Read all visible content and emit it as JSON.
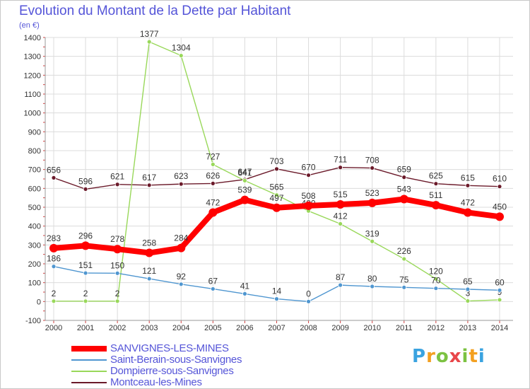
{
  "chart_data": {
    "type": "line",
    "title": "Evolution du Montant de la Dette par Habitant",
    "unit_label": "(en €)",
    "x": [
      "2000",
      "2001",
      "2002",
      "2003",
      "2004",
      "2005",
      "2006",
      "2007",
      "2008",
      "2009",
      "2010",
      "2011",
      "2012",
      "2013",
      "2014"
    ],
    "ylim": [
      -100,
      1400
    ],
    "yticks": [
      -100,
      0,
      100,
      200,
      300,
      400,
      500,
      600,
      700,
      800,
      900,
      1000,
      1100,
      1200,
      1300,
      1400
    ],
    "grid": true,
    "legend_position": "bottom-left",
    "series": [
      {
        "name": "Montceau-les-Mines",
        "color": "#6b1a2a",
        "values": [
          656,
          596,
          621,
          617,
          623,
          626,
          647,
          703,
          670,
          711,
          708,
          659,
          625,
          615,
          610
        ]
      },
      {
        "name": "Dompierre-sous-Sanvignes",
        "color": "#99d85a",
        "values": [
          2,
          2,
          2,
          1377,
          1304,
          727,
          641,
          565,
          480,
          412,
          319,
          226,
          120,
          3,
          9
        ]
      },
      {
        "name": "Saint-Berain-sous-Sanvignes",
        "color": "#4f96d0",
        "values": [
          186,
          151,
          150,
          121,
          92,
          67,
          41,
          14,
          0,
          87,
          80,
          75,
          70,
          65,
          60
        ]
      },
      {
        "name": "SANVIGNES-LES-MINES",
        "color": "#ff0000",
        "values": [
          283,
          296,
          278,
          258,
          284,
          472,
          539,
          497,
          508,
          515,
          523,
          543,
          511,
          472,
          450
        ]
      }
    ],
    "legend": [
      {
        "name": "SANVIGNES-LES-MINES",
        "color": "#ff0000",
        "thickness": 8
      },
      {
        "name": "Saint-Berain-sous-Sanvignes",
        "color": "#4f96d0",
        "thickness": 2
      },
      {
        "name": "Dompierre-sous-Sanvignes",
        "color": "#99d85a",
        "thickness": 2
      },
      {
        "name": "Montceau-les-Mines",
        "color": "#6b1a2a",
        "thickness": 2
      }
    ]
  },
  "brand": {
    "letters": [
      "P",
      "r",
      "o",
      "x",
      "i",
      "t",
      "i"
    ],
    "colors": [
      "#3aa3e0",
      "#f3a020",
      "#7cc242",
      "#e8474a"
    ]
  }
}
